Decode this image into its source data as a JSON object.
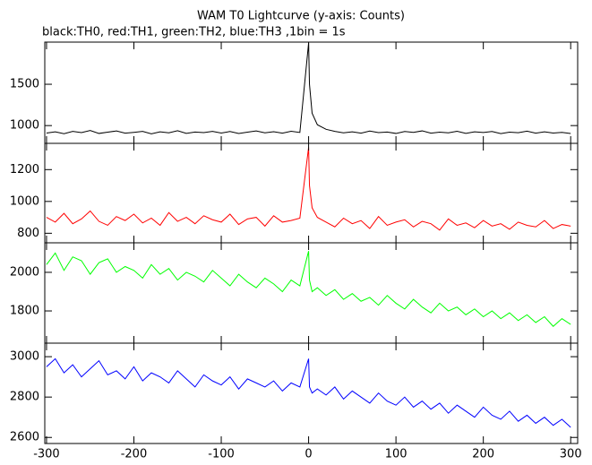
{
  "chart_data": [
    {
      "type": "line",
      "title": "WAM T0 Lightcurve (y-axis: Counts)",
      "subtitle": "black:TH0, red:TH1, green:TH2, blue:TH3 ,1bin = 1s",
      "color": "#000000",
      "x": [
        -300,
        -290,
        -280,
        -270,
        -260,
        -250,
        -240,
        -230,
        -220,
        -210,
        -200,
        -190,
        -180,
        -170,
        -160,
        -150,
        -140,
        -130,
        -120,
        -110,
        -100,
        -90,
        -80,
        -70,
        -60,
        -50,
        -40,
        -30,
        -20,
        -10,
        0,
        1,
        4,
        10,
        20,
        30,
        40,
        50,
        60,
        70,
        80,
        90,
        100,
        110,
        120,
        130,
        140,
        150,
        160,
        170,
        180,
        190,
        200,
        210,
        220,
        230,
        240,
        250,
        260,
        270,
        280,
        290,
        300
      ],
      "values": [
        910,
        925,
        902,
        930,
        915,
        940,
        905,
        920,
        935,
        908,
        918,
        930,
        900,
        925,
        912,
        938,
        906,
        922,
        915,
        930,
        910,
        928,
        904,
        921,
        935,
        912,
        926,
        908,
        931,
        917,
        2000,
        1500,
        1150,
        1010,
        955,
        930,
        912,
        925,
        908,
        934,
        915,
        922,
        905,
        928,
        918,
        936,
        909,
        920,
        913,
        931,
        906,
        924,
        917,
        929,
        903,
        921,
        914,
        932,
        908,
        925,
        910,
        918,
        904
      ],
      "xlim": [
        -302,
        308
      ],
      "ylim": [
        785,
        2010
      ],
      "yticks": [
        1000,
        1500
      ]
    },
    {
      "type": "line",
      "color": "#ff0000",
      "x": [
        -300,
        -290,
        -280,
        -270,
        -260,
        -250,
        -240,
        -230,
        -220,
        -210,
        -200,
        -190,
        -180,
        -170,
        -160,
        -150,
        -140,
        -130,
        -120,
        -110,
        -100,
        -90,
        -80,
        -70,
        -60,
        -50,
        -40,
        -30,
        -20,
        -10,
        0,
        1,
        4,
        10,
        20,
        30,
        40,
        50,
        60,
        70,
        80,
        90,
        100,
        110,
        120,
        130,
        140,
        150,
        160,
        170,
        180,
        190,
        200,
        210,
        220,
        230,
        240,
        250,
        260,
        270,
        280,
        290,
        300
      ],
      "values": [
        900,
        870,
        925,
        860,
        890,
        940,
        875,
        850,
        905,
        880,
        920,
        865,
        895,
        850,
        930,
        875,
        900,
        860,
        910,
        885,
        870,
        920,
        855,
        890,
        900,
        845,
        910,
        870,
        880,
        895,
        1340,
        1100,
        960,
        900,
        870,
        840,
        895,
        860,
        880,
        830,
        905,
        850,
        870,
        885,
        840,
        875,
        860,
        820,
        890,
        850,
        865,
        835,
        880,
        845,
        860,
        825,
        870,
        850,
        840,
        880,
        830,
        855,
        845
      ],
      "xlim": [
        -302,
        308
      ],
      "ylim": [
        740,
        1365
      ],
      "yticks": [
        800,
        1000,
        1200
      ]
    },
    {
      "type": "line",
      "color": "#00ff00",
      "x": [
        -300,
        -290,
        -280,
        -270,
        -260,
        -250,
        -240,
        -230,
        -220,
        -210,
        -200,
        -190,
        -180,
        -170,
        -160,
        -150,
        -140,
        -130,
        -120,
        -110,
        -100,
        -90,
        -80,
        -70,
        -60,
        -50,
        -40,
        -30,
        -20,
        -10,
        0,
        1,
        4,
        10,
        20,
        30,
        40,
        50,
        60,
        70,
        80,
        90,
        100,
        110,
        120,
        130,
        140,
        150,
        160,
        170,
        180,
        190,
        200,
        210,
        220,
        230,
        240,
        250,
        260,
        270,
        280,
        290,
        300
      ],
      "values": [
        2040,
        2100,
        2010,
        2080,
        2060,
        1990,
        2050,
        2070,
        2000,
        2030,
        2010,
        1970,
        2040,
        1990,
        2020,
        1960,
        2000,
        1980,
        1950,
        2010,
        1970,
        1930,
        1990,
        1950,
        1920,
        1970,
        1940,
        1900,
        1960,
        1930,
        2110,
        1960,
        1900,
        1920,
        1880,
        1910,
        1860,
        1890,
        1850,
        1870,
        1830,
        1880,
        1840,
        1810,
        1860,
        1820,
        1790,
        1840,
        1800,
        1820,
        1780,
        1810,
        1770,
        1800,
        1760,
        1790,
        1750,
        1780,
        1740,
        1770,
        1720,
        1760,
        1730
      ],
      "xlim": [
        -302,
        308
      ],
      "ylim": [
        1633,
        2153
      ],
      "yticks": [
        1800,
        2000
      ]
    },
    {
      "type": "line",
      "color": "#0000ff",
      "x": [
        -300,
        -290,
        -280,
        -270,
        -260,
        -250,
        -240,
        -230,
        -220,
        -210,
        -200,
        -190,
        -180,
        -170,
        -160,
        -150,
        -140,
        -130,
        -120,
        -110,
        -100,
        -90,
        -80,
        -70,
        -60,
        -50,
        -40,
        -30,
        -20,
        -10,
        0,
        1,
        4,
        10,
        20,
        30,
        40,
        50,
        60,
        70,
        80,
        90,
        100,
        110,
        120,
        130,
        140,
        150,
        160,
        170,
        180,
        190,
        200,
        210,
        220,
        230,
        240,
        250,
        260,
        270,
        280,
        290,
        300
      ],
      "values": [
        2950,
        2990,
        2920,
        2960,
        2900,
        2940,
        2980,
        2910,
        2930,
        2890,
        2950,
        2880,
        2920,
        2900,
        2870,
        2930,
        2890,
        2850,
        2910,
        2880,
        2860,
        2900,
        2840,
        2890,
        2870,
        2850,
        2880,
        2830,
        2870,
        2850,
        2990,
        2850,
        2820,
        2840,
        2810,
        2850,
        2790,
        2830,
        2800,
        2770,
        2820,
        2780,
        2760,
        2800,
        2750,
        2780,
        2740,
        2770,
        2720,
        2760,
        2730,
        2700,
        2750,
        2710,
        2690,
        2730,
        2680,
        2710,
        2670,
        2700,
        2660,
        2690,
        2650
      ],
      "xlim": [
        -302,
        308
      ],
      "ylim": [
        2570,
        3067
      ],
      "yticks": [
        2600,
        2800,
        3000
      ],
      "xticks": [
        -300,
        -200,
        -100,
        0,
        100,
        200,
        300
      ]
    }
  ]
}
